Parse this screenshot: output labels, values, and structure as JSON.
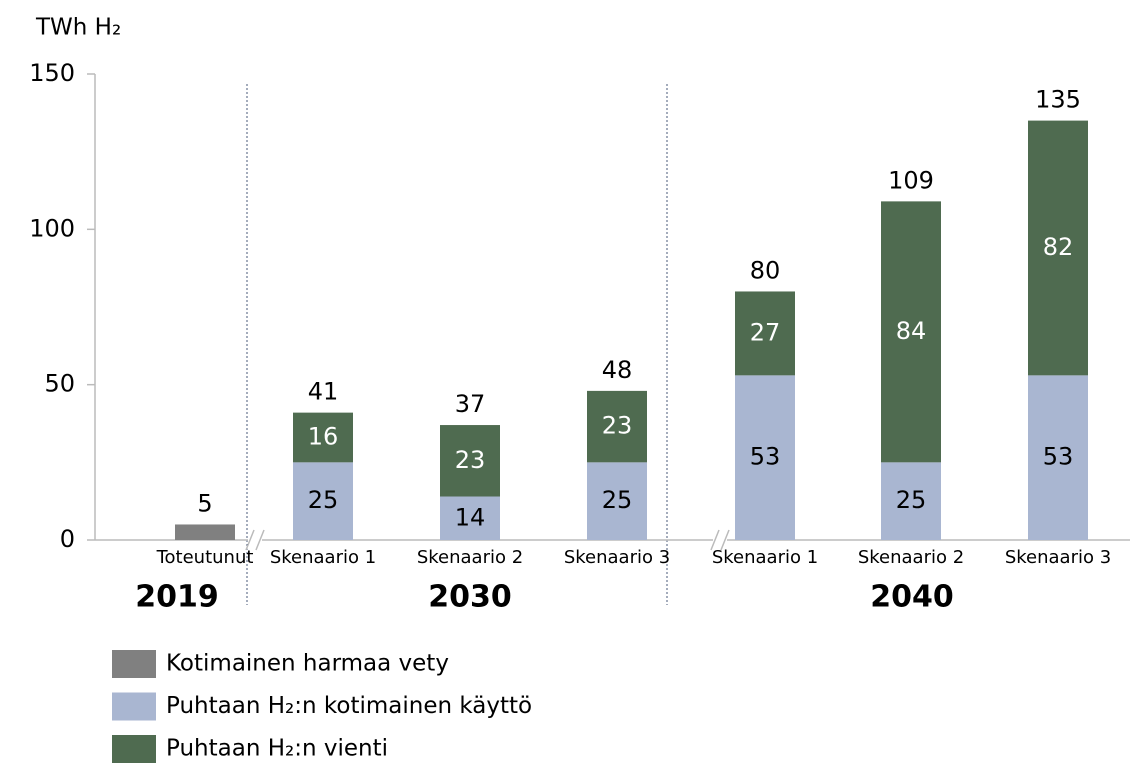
{
  "chart_data": {
    "type": "stacked-bar",
    "y_label": "TWh H₂",
    "categories": [
      "Toteutunut",
      "Skenaario 1",
      "Skenaario 2",
      "Skenaario 3",
      "Skenaario 1",
      "Skenaario 2",
      "Skenaario 3"
    ],
    "groups": [
      "2019",
      "2030",
      "2040"
    ],
    "series": [
      {
        "name": "Kotimainen harmaa vety",
        "color": "#808080",
        "values": [
          5,
          null,
          null,
          null,
          null,
          null,
          null
        ]
      },
      {
        "name": "Puhtaan H₂:n kotimainen käyttö",
        "color": "#a9b6d1",
        "values": [
          null,
          25,
          14,
          25,
          53,
          25,
          53
        ]
      },
      {
        "name": "Puhtaan H₂:n vienti",
        "color": "#4f6b50",
        "values": [
          null,
          16,
          23,
          23,
          27,
          84,
          82
        ]
      }
    ],
    "totals": [
      5,
      41,
      37,
      48,
      80,
      109,
      135
    ],
    "ylim": [
      0,
      150
    ],
    "yticks": [
      0,
      50,
      100,
      150
    ]
  }
}
